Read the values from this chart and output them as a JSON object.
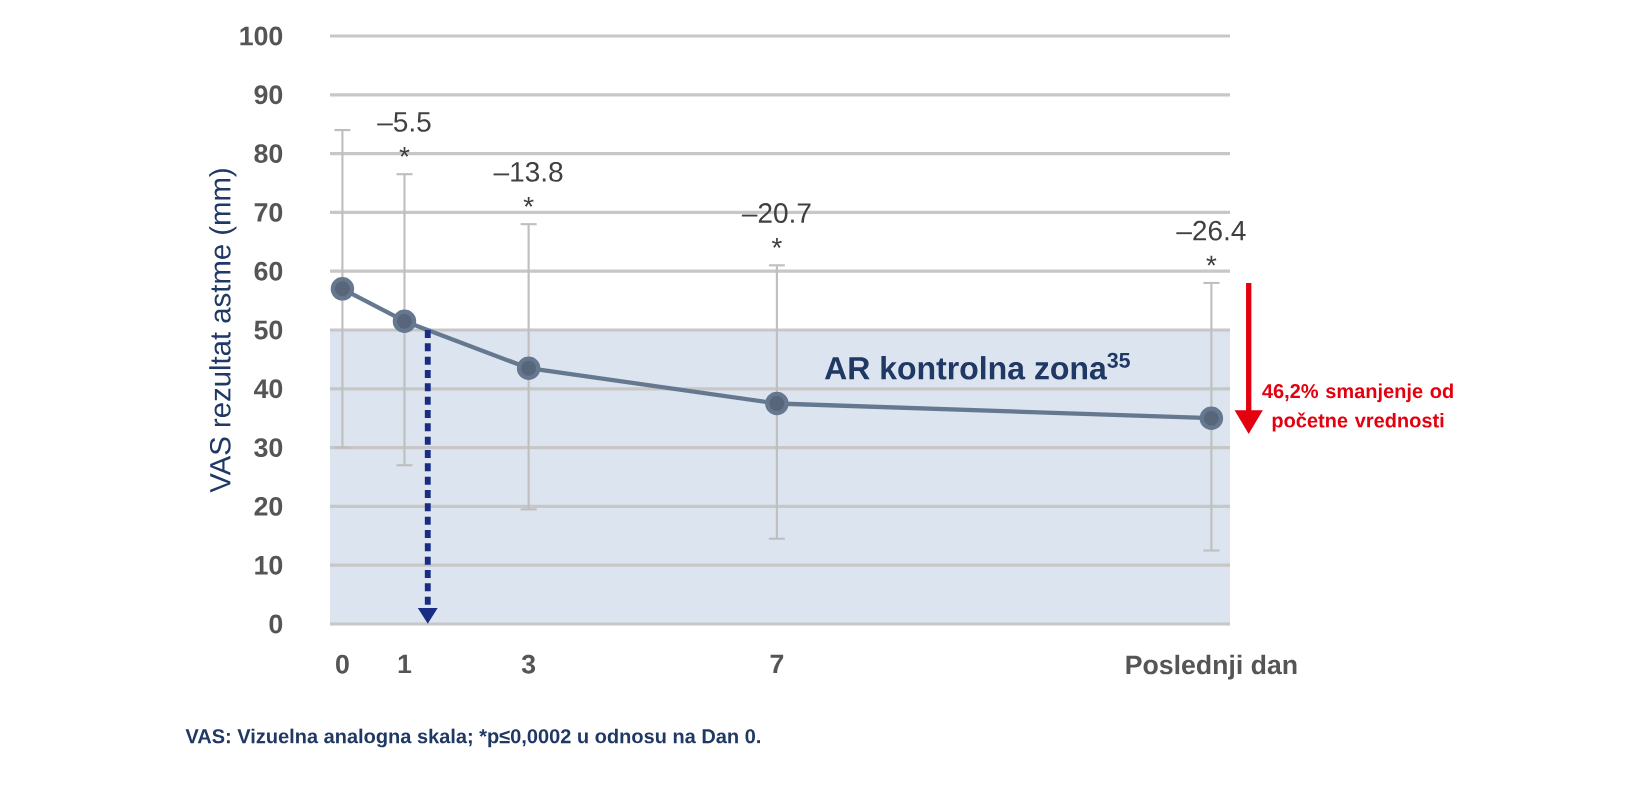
{
  "chart_data": {
    "type": "line",
    "ylabel": "VAS rezultat astme (mm)",
    "x": [
      0,
      1,
      3,
      7,
      14
    ],
    "series": [
      {
        "color": "#66788f",
        "values": [
          57,
          51.5,
          43.5,
          37.5,
          35
        ],
        "errors": [
          [
            30,
            84
          ],
          [
            27,
            76.5
          ],
          [
            19.5,
            68
          ],
          [
            14.5,
            61
          ],
          [
            12.5,
            58
          ]
        ]
      }
    ],
    "xlim": [
      -0.2,
      14.3
    ],
    "xticks": [
      0,
      1,
      3,
      7,
      {
        "value": 14,
        "label": "Poslednji dan"
      }
    ],
    "ylim": [
      0,
      100
    ],
    "yticks": [
      0,
      10,
      20,
      30,
      40,
      50,
      60,
      70,
      80,
      90,
      100
    ],
    "grid": "y",
    "marker": "circle",
    "bands": [
      {
        "axis": "y",
        "from": 0,
        "to": 50,
        "label": "AR kontrolna zona$^{35}$",
        "color": "#dce4ef"
      }
    ],
    "annotations": [
      "–5.5",
      "*",
      "–13.8",
      "*",
      "–20.7",
      "*",
      "–26.4",
      "*",
      "46,2% smanjenje od početne vrednosti",
      "VAS: Vizuelna analogna skala; *p≤0,0002 u odnosu na Dan 0."
    ]
  }
}
